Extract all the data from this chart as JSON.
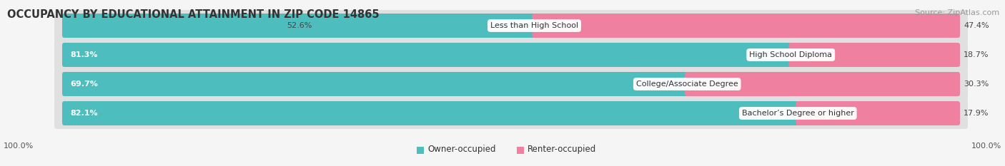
{
  "title": "OCCUPANCY BY EDUCATIONAL ATTAINMENT IN ZIP CODE 14865",
  "source": "Source: ZipAtlas.com",
  "categories": [
    "Less than High School",
    "High School Diploma",
    "College/Associate Degree",
    "Bachelor’s Degree or higher"
  ],
  "owner_values": [
    52.6,
    81.3,
    69.7,
    82.1
  ],
  "renter_values": [
    47.4,
    18.7,
    30.3,
    17.9
  ],
  "owner_color": "#4dbdbe",
  "renter_color": "#f080a0",
  "row_bg_color": "#e8e8e8",
  "bg_color": "#f5f5f5",
  "title_fontsize": 10.5,
  "source_fontsize": 8,
  "legend_labels": [
    "Owner-occupied",
    "Renter-occupied"
  ],
  "axis_label_left": "100.0%",
  "axis_label_right": "100.0%"
}
